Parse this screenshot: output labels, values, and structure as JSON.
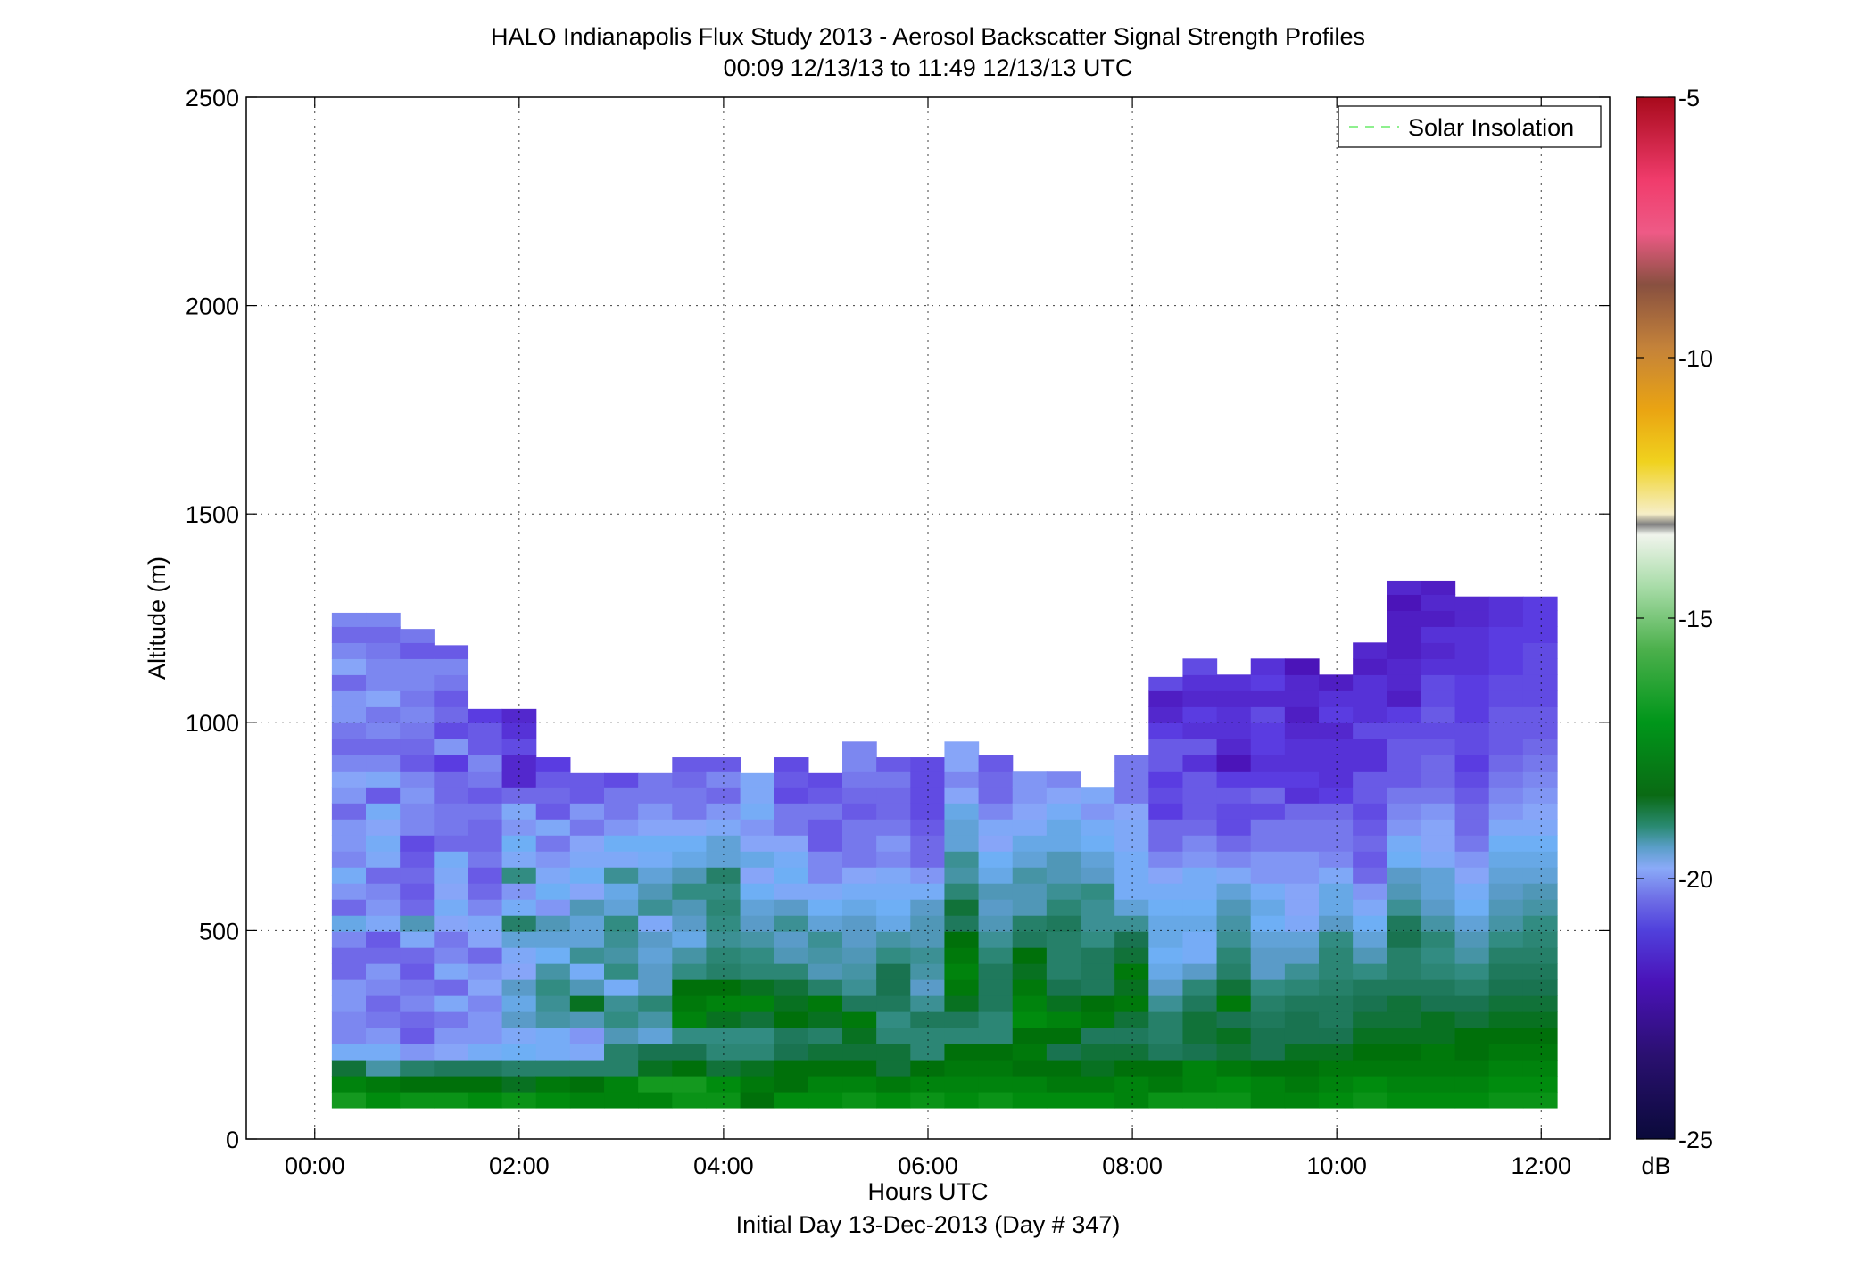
{
  "chart_data": {
    "type": "heatmap",
    "title": "HALO Indianapolis Flux Study 2013 - Aerosol Backscatter Signal Strength Profiles",
    "subtitle": "00:09 12/13/13 to 11:49 12/13/13  UTC",
    "xlabel": "Hours UTC",
    "xlabel2": "Initial Day 13-Dec-2013 (Day # 347)",
    "ylabel": "Altitude (m)",
    "xlim": [
      -0.67,
      12.67
    ],
    "ylim": [
      0,
      2500
    ],
    "x_ticks": [
      "00:00",
      "02:00",
      "04:00",
      "06:00",
      "08:00",
      "10:00",
      "12:00"
    ],
    "x_tick_values": [
      0,
      2,
      4,
      6,
      8,
      10,
      12
    ],
    "y_ticks": [
      "0",
      "500",
      "1000",
      "1500",
      "2000",
      "2500"
    ],
    "y_tick_values": [
      0,
      500,
      1000,
      1500,
      2000,
      2500
    ],
    "grid": true,
    "legend_placement": "top-right",
    "legend": [
      {
        "label": "Solar Insolation",
        "style": "dashed",
        "color": "#8ef08e"
      }
    ],
    "colorbar": {
      "label": "dB",
      "range": [
        -25,
        -5
      ],
      "ticks": [
        "-5",
        "-10",
        "-15",
        "-20",
        "-25"
      ],
      "tick_values": [
        -5,
        -10,
        -15,
        -20,
        -25
      ]
    },
    "cell": {
      "x_start_hours": 0.167,
      "x_step_hours": 0.333,
      "y_start_m": 75,
      "y_step_m": 38.5,
      "columns": 36
    },
    "profile_top_m": [
      1263,
      1263,
      1224,
      1185,
      1032,
      1032,
      916,
      878,
      878,
      878,
      916,
      916,
      878,
      916,
      878,
      954,
      916,
      916,
      954,
      954,
      1032,
      1032,
      993,
      1070,
      1109,
      1185,
      1185,
      1224,
      1224,
      1263,
      1224,
      1340,
      1340,
      1302,
      1302,
      1302
    ],
    "profile_levels_dB": [
      [
        -19.3,
        -19.6,
        -20.0,
        -21.3,
        -21.7,
        -21.7,
        -21.6,
        -21.6,
        -21.9,
        -21.9,
        -21.7,
        -21.1,
        -21.9,
        -21.6,
        -21.3,
        -21.7,
        -21.6,
        -21.6,
        -21.9,
        -21.6,
        -21.5,
        -21.7,
        -21.9,
        -21.8,
        -21.6,
        -21.6,
        -21.9,
        -21.5,
        -21.7,
        -21.9,
        -21.7,
        -22.0,
        -22.0
      ],
      [
        -19.5,
        -19.7,
        -20.7,
        -21.3,
        -21.6,
        -21.8,
        -21.9,
        -21.7,
        -21.6,
        -21.9,
        -22.0,
        -21.4,
        -21.6,
        -21.7,
        -21.9,
        -21.4,
        -21.3,
        -21.5,
        -21.3,
        -22.0,
        -21.4,
        -21.7,
        -21.9,
        -21.7,
        -21.8,
        -21.5,
        -21.7,
        -21.7,
        -21.8,
        -21.9,
        -21.7,
        -22.1,
        -21.7
      ],
      [
        -19.4,
        -19.8,
        -20.3,
        -21.6,
        -22.0,
        -21.9,
        -21.7,
        -21.8,
        -22.0,
        -21.9,
        -21.4,
        -20.8,
        -21.9,
        -22.0,
        -21.9,
        -22.0,
        -22.1,
        -21.7,
        -21.7,
        -21.6,
        -21.7,
        -22.0,
        -21.9,
        -21.8,
        -21.7,
        -21.8,
        -21.7,
        -21.7,
        -22.0,
        -21.8,
        -21.8,
        -21.7
      ],
      [
        -19.4,
        -19.8,
        -20.2,
        -21.5,
        -21.6,
        -21.8,
        -21.4,
        -21.9,
        -21.4,
        -21.7,
        -21.8,
        -21.5,
        -21.3,
        -21.5,
        -21.4,
        -21.3,
        -21.9,
        -21.8,
        -21.8,
        -21.9,
        -21.9,
        -22.2,
        -21.6,
        -22.1,
        -21.9,
        -22.0,
        -21.8,
        -21.7,
        -22.0,
        -21.8,
        -21.9
      ],
      [
        -19.5,
        -19.8,
        -20.2,
        -21.3,
        -21.6,
        -21.6,
        -21.7,
        -21.5,
        -21.6,
        -21.9,
        -21.5,
        -21.4,
        -21.7,
        -21.9,
        -22.0,
        -21.8,
        -21.9,
        -21.9,
        -21.8,
        -22.0,
        -21.8,
        -21.7,
        -22.0,
        -22.0,
        -22.2,
        -22.2,
        -22.3,
        -22.1,
        -22.3
      ],
      [
        -19.4,
        -19.9,
        -20.3,
        -21.2,
        -21.4,
        -20.9,
        -21.1,
        -20.9,
        -21.5,
        -21.4,
        -21.0,
        -20.3,
        -21.3,
        -21.6,
        -20.5,
        -21.4,
        -21.2,
        -21.6,
        -21.4,
        -21.9,
        -22.4,
        -22.4,
        -22.1,
        -22.3,
        -22.4,
        -22.2
      ],
      [
        -19.5,
        -19.7,
        -20.3,
        -21.3,
        -21.3,
        -20.7,
        -20.6,
        -20.5,
        -20.7,
        -21.2,
        -21.0,
        -20.8,
        -21.6,
        -21.2,
        -21.4,
        -21.6,
        -21.8,
        -21.4,
        -22.0,
        -21.9,
        -22.0,
        -22.2,
        -22.2,
        -22.0
      ],
      [
        -19.6,
        -19.8,
        -20.3,
        -21.4,
        -21.6,
        -20.8,
        -19.9,
        -20.8,
        -21.3,
        -20.6,
        -21.0,
        -21.0,
        -20.8,
        -21.5,
        -21.2,
        -21.4,
        -21.5,
        -21.8,
        -21.6,
        -22.0,
        -22.0,
        -22.1,
        -22.2,
        -22.0
      ],
      [
        -19.6,
        -19.6,
        -20.3,
        -20.3,
        -20.8,
        -20.5,
        -20.6,
        -21.3,
        -20.5,
        -20.7,
        -20.6,
        -20.5,
        -21.0,
        -21.1,
        -20.6,
        -21.4,
        -21.2,
        -21.6,
        -21.8,
        -21.8,
        -22.1,
        -22.3,
        -22.0
      ],
      [
        -19.6,
        -19.3,
        -19.9,
        -20.1,
        -21.0,
        -20.7,
        -20.4,
        -20.9,
        -20.9,
        -21.0,
        -20.9,
        -21.4,
        -20.6,
        -20.8,
        -21.0,
        -21.3,
        -21.2,
        -21.5,
        -21.6,
        -21.8,
        -21.8
      ],
      [
        -19.4,
        -19.3,
        -19.8,
        -20.1,
        -20.5,
        -19.6,
        -19.7,
        -19.8,
        -20.5,
        -20.7,
        -21.1,
        -20.9,
        -20.8,
        -20.5,
        -20.8,
        -21.1,
        -21.2,
        -21.5,
        -21.8,
        -21.8,
        -21.9,
        -22.0
      ],
      [
        -19.4,
        -19.5,
        -20.0,
        -20.4,
        -20.5,
        -19.9,
        -19.6,
        -19.8,
        -20.3,
        -20.4,
        -20.6,
        -20.5,
        -20.4,
        -20.5,
        -20.3,
        -21.0,
        -21.0,
        -21.4,
        -21.6,
        -21.9,
        -21.7,
        -22.0,
        -22.1,
        -22.1
      ],
      [
        -19.8,
        -19.7,
        -19.9,
        -20.4,
        -20.5,
        -20.0,
        -19.6,
        -19.9,
        -20.4,
        -20.5,
        -20.7,
        -20.9,
        -21.0,
        -21.2,
        -21.5,
        -21.1,
        -21.5,
        -21.6,
        -21.3,
        -21.4,
        -21.4,
        -21.6,
        -21.3,
        -21.9
      ],
      [
        -19.5,
        -19.8,
        -19.8,
        -20.1,
        -20.2,
        -19.8,
        -19.9,
        -20.0,
        -20.4,
        -20.8,
        -20.9,
        -20.6,
        -20.9,
        -21.4,
        -21.2,
        -21.3,
        -21.5,
        -21.8,
        -21.8,
        -22.1,
        -22.0,
        -22.1,
        -22.1
      ],
      [
        -19.5,
        -19.6,
        -19.8,
        -20.0,
        -20.3,
        -19.9,
        -19.7,
        -20.3,
        -20.8,
        -20.7,
        -20.6,
        -21.0,
        -21.2,
        -21.4,
        -21.7,
        -21.7,
        -22.0,
        -22.0,
        -21.8,
        -22.0,
        -22.1
      ],
      [
        -19.4,
        -19.6,
        -19.8,
        -20.0,
        -19.9,
        -19.7,
        -20.2,
        -20.6,
        -20.7,
        -20.8,
        -20.9,
        -20.9,
        -21.1,
        -21.3,
        -21.5,
        -21.8,
        -21.8,
        -21.8,
        -22.0,
        -21.9,
        -21.8,
        -21.7,
        -21.7
      ],
      [
        -19.5,
        -19.7,
        -20.0,
        -20.0,
        -20.4,
        -20.5,
        -20.2,
        -20.1,
        -20.1,
        -20.5,
        -20.7,
        -21.1,
        -21.2,
        -21.3,
        -21.4,
        -21.7,
        -21.6,
        -21.8,
        -21.9,
        -21.9,
        -21.8,
        -22.0,
        -21.8
      ],
      [
        -19.4,
        -19.6,
        -19.8,
        -20.4,
        -20.4,
        -20.2,
        -20.6,
        -20.9,
        -20.7,
        -20.6,
        -20.8,
        -20.8,
        -20.9,
        -21.3,
        -21.6,
        -21.9,
        -21.9,
        -22.0,
        -22.1,
        -22.1,
        -22.1,
        -22.1,
        -22.0
      ],
      [
        -19.5,
        -19.6,
        -19.7,
        -19.8,
        -20.4,
        -20.2,
        -19.9,
        -19.7,
        -19.6,
        -19.7,
        -19.8,
        -20.2,
        -20.0,
        -20.4,
        -20.7,
        -20.6,
        -21.0,
        -21.0,
        -21.1,
        -21.5,
        -21.7,
        -21.5,
        -21.5
      ],
      [
        -19.4,
        -19.6,
        -19.7,
        -19.8,
        -20.4,
        -20.4,
        -20.2,
        -20.2,
        -20.2,
        -20.4,
        -20.6,
        -20.8,
        -20.9,
        -20.8,
        -21.1,
        -21.2,
        -21.5,
        -21.4,
        -21.7,
        -21.9,
        -21.9,
        -22.0
      ],
      [
        -19.5,
        -19.6,
        -19.8,
        -19.7,
        -19.8,
        -19.5,
        -19.6,
        -19.7,
        -19.9,
        -19.8,
        -20.2,
        -20.3,
        -20.8,
        -20.8,
        -20.7,
        -21.0,
        -21.1,
        -21.4,
        -21.5,
        -21.6,
        -21.6
      ],
      [
        -19.5,
        -19.7,
        -19.8,
        -20.1,
        -19.8,
        -19.6,
        -19.9,
        -20.1,
        -20.3,
        -20.3,
        -20.3,
        -20.2,
        -20.4,
        -20.6,
        -20.8,
        -20.8,
        -21.1,
        -21.1,
        -21.3,
        -21.5,
        -21.7
      ],
      [
        -19.5,
        -19.7,
        -19.9,
        -20.0,
        -20.2,
        -19.7,
        -19.8,
        -20.2,
        -20.2,
        -20.2,
        -20.5,
        -20.6,
        -20.6,
        -20.5,
        -20.9,
        -21.0,
        -21.2,
        -21.3,
        -21.6,
        -21.4
      ],
      [
        -19.6,
        -19.6,
        -19.8,
        -20.0,
        -20.2,
        -20.0,
        -19.7,
        -19.9,
        -19.7,
        -20.0,
        -20.1,
        -20.6,
        -21.0,
        -21.3,
        -21.3,
        -21.3,
        -21.4,
        -21.4,
        -21.5,
        -21.8,
        -21.8,
        -21.8
      ],
      [
        -19.4,
        -19.7,
        -19.8,
        -20.2,
        -20.3,
        -20.3,
        -20.6,
        -20.9,
        -21.1,
        -21.2,
        -21.1,
        -21.1,
        -21.2,
        -21.3,
        -21.5,
        -21.7,
        -21.9,
        -21.9,
        -22.2,
        -22.1,
        -22.2,
        -22.0,
        -22.0,
        -22.2,
        -22.4,
        -22.5,
        -22.1,
        -22.3
      ],
      [
        -19.4,
        -19.6,
        -19.6,
        -20.1,
        -20.0,
        -20.0,
        -20.2,
        -20.4,
        -20.9,
        -21.3,
        -21.3,
        -21.1,
        -21.2,
        -21.3,
        -21.3,
        -21.6,
        -21.7,
        -21.9,
        -22.0,
        -22.0,
        -22.0,
        -22.3,
        -22.0,
        -22.3,
        -22.2,
        -22.4,
        -22.3,
        -22.1
      ],
      [
        -19.4,
        -19.5,
        -19.7,
        -20.0,
        -19.9,
        -20.1,
        -19.7,
        -20.0,
        -20.3,
        -20.4,
        -20.6,
        -20.7,
        -20.8,
        -21.0,
        -21.4,
        -21.7,
        -21.9,
        -22.1,
        -22.1,
        -22.0,
        -22.2,
        -22.6,
        -22.4,
        -22.3,
        -22.3,
        -22.4,
        -22.3
      ],
      [
        -19.6,
        -19.6,
        -19.8,
        -20.1,
        -20.1,
        -20.2,
        -20.3,
        -20.5,
        -20.9,
        -20.9,
        -21.0,
        -21.2,
        -21.1,
        -21.3,
        -21.6,
        -21.6,
        -21.8,
        -21.8,
        -22.1,
        -21.9,
        -22.2,
        -22.3,
        -22.2,
        -22.2,
        -22.1,
        -22.4,
        -22.2,
        -22.3
      ],
      [
        -19.6,
        -19.7,
        -19.8,
        -19.9,
        -20.1,
        -20.1,
        -20.2,
        -20.4,
        -20.6,
        -20.9,
        -21.0,
        -21.4,
        -21.5,
        -21.5,
        -21.6,
        -21.6,
        -21.8,
        -21.8,
        -21.9,
        -22.3,
        -22.2,
        -22.3,
        -22.3,
        -22.4,
        -22.5,
        -22.4,
        -22.4,
        -22.6
      ],
      [
        -19.5,
        -19.6,
        -19.7,
        -19.9,
        -20.1,
        -20.2,
        -20.2,
        -20.3,
        -20.4,
        -20.4,
        -20.5,
        -20.9,
        -21.1,
        -21.1,
        -21.4,
        -21.7,
        -21.8,
        -21.8,
        -21.9,
        -22.2,
        -22.3,
        -22.3,
        -22.3,
        -22.4,
        -22.2,
        -22.3,
        -22.5
      ],
      [
        -19.4,
        -19.5,
        -19.7,
        -19.8,
        -19.9,
        -20.0,
        -20.1,
        -20.2,
        -20.5,
        -20.8,
        -21.0,
        -21.2,
        -21.4,
        -21.6,
        -21.9,
        -22.0,
        -21.9,
        -22.0,
        -22.1,
        -22.0,
        -22.0,
        -22.3,
        -22.3,
        -22.1,
        -22.3,
        -22.3,
        -22.3,
        -22.5,
        -22.4
      ],
      [
        -19.5,
        -19.6,
        -19.7,
        -19.8,
        -19.9,
        -20.0,
        -20.0,
        -20.2,
        -20.3,
        -20.3,
        -20.1,
        -20.2,
        -20.6,
        -20.8,
        -20.9,
        -21.2,
        -21.3,
        -21.6,
        -21.7,
        -21.8,
        -22.0,
        -22.0,
        -22.0,
        -22.1,
        -22.2,
        -22.5,
        -22.4,
        -22.4,
        -22.5,
        -22.5,
        -22.5,
        -22.6,
        -22.4,
        -22.5
      ],
      [
        -19.5,
        -19.6,
        -19.7,
        -19.7,
        -19.9,
        -19.9,
        -20.1,
        -20.2,
        -20.4,
        -20.5,
        -20.4,
        -20.7,
        -20.9,
        -21.0,
        -21.0,
        -21.4,
        -21.5,
        -21.5,
        -21.6,
        -21.8,
        -21.9,
        -21.9,
        -22.0,
        -22.1,
        -22.0,
        -22.1,
        -22.1,
        -22.3,
        -22.4,
        -22.3,
        -22.5,
        -22.4,
        -22.5,
        -22.4
      ],
      [
        -19.5,
        -19.6,
        -19.7,
        -19.8,
        -19.8,
        -20.0,
        -20.1,
        -20.3,
        -20.5,
        -20.7,
        -20.8,
        -21.0,
        -21.2,
        -21.3,
        -21.5,
        -21.6,
        -21.8,
        -21.9,
        -21.9,
        -22.0,
        -22.1,
        -22.2,
        -22.1,
        -22.1,
        -22.2,
        -22.2,
        -22.2,
        -22.3,
        -22.3,
        -22.3,
        -22.4,
        -22.4,
        -22.4
      ],
      [
        -19.4,
        -19.5,
        -19.6,
        -19.7,
        -19.8,
        -19.9,
        -20.0,
        -20.1,
        -20.2,
        -20.3,
        -20.5,
        -20.7,
        -20.8,
        -20.9,
        -21.0,
        -21.1,
        -21.2,
        -21.4,
        -21.6,
        -21.7,
        -21.8,
        -21.9,
        -22.0,
        -22.0,
        -22.0,
        -22.1,
        -22.1,
        -22.2,
        -22.2,
        -22.2,
        -22.3,
        -22.3,
        -22.3
      ],
      [
        -19.4,
        -19.5,
        -19.6,
        -19.7,
        -19.8,
        -19.9,
        -20.0,
        -20.1,
        -20.2,
        -20.3,
        -20.4,
        -20.5,
        -20.7,
        -20.8,
        -21.0,
        -21.1,
        -21.2,
        -21.4,
        -21.5,
        -21.6,
        -21.7,
        -21.8,
        -21.9,
        -22.0,
        -22.0,
        -22.1,
        -22.1,
        -22.1,
        -22.1,
        -22.2,
        -22.2,
        -22.2,
        -22.2
      ]
    ]
  }
}
